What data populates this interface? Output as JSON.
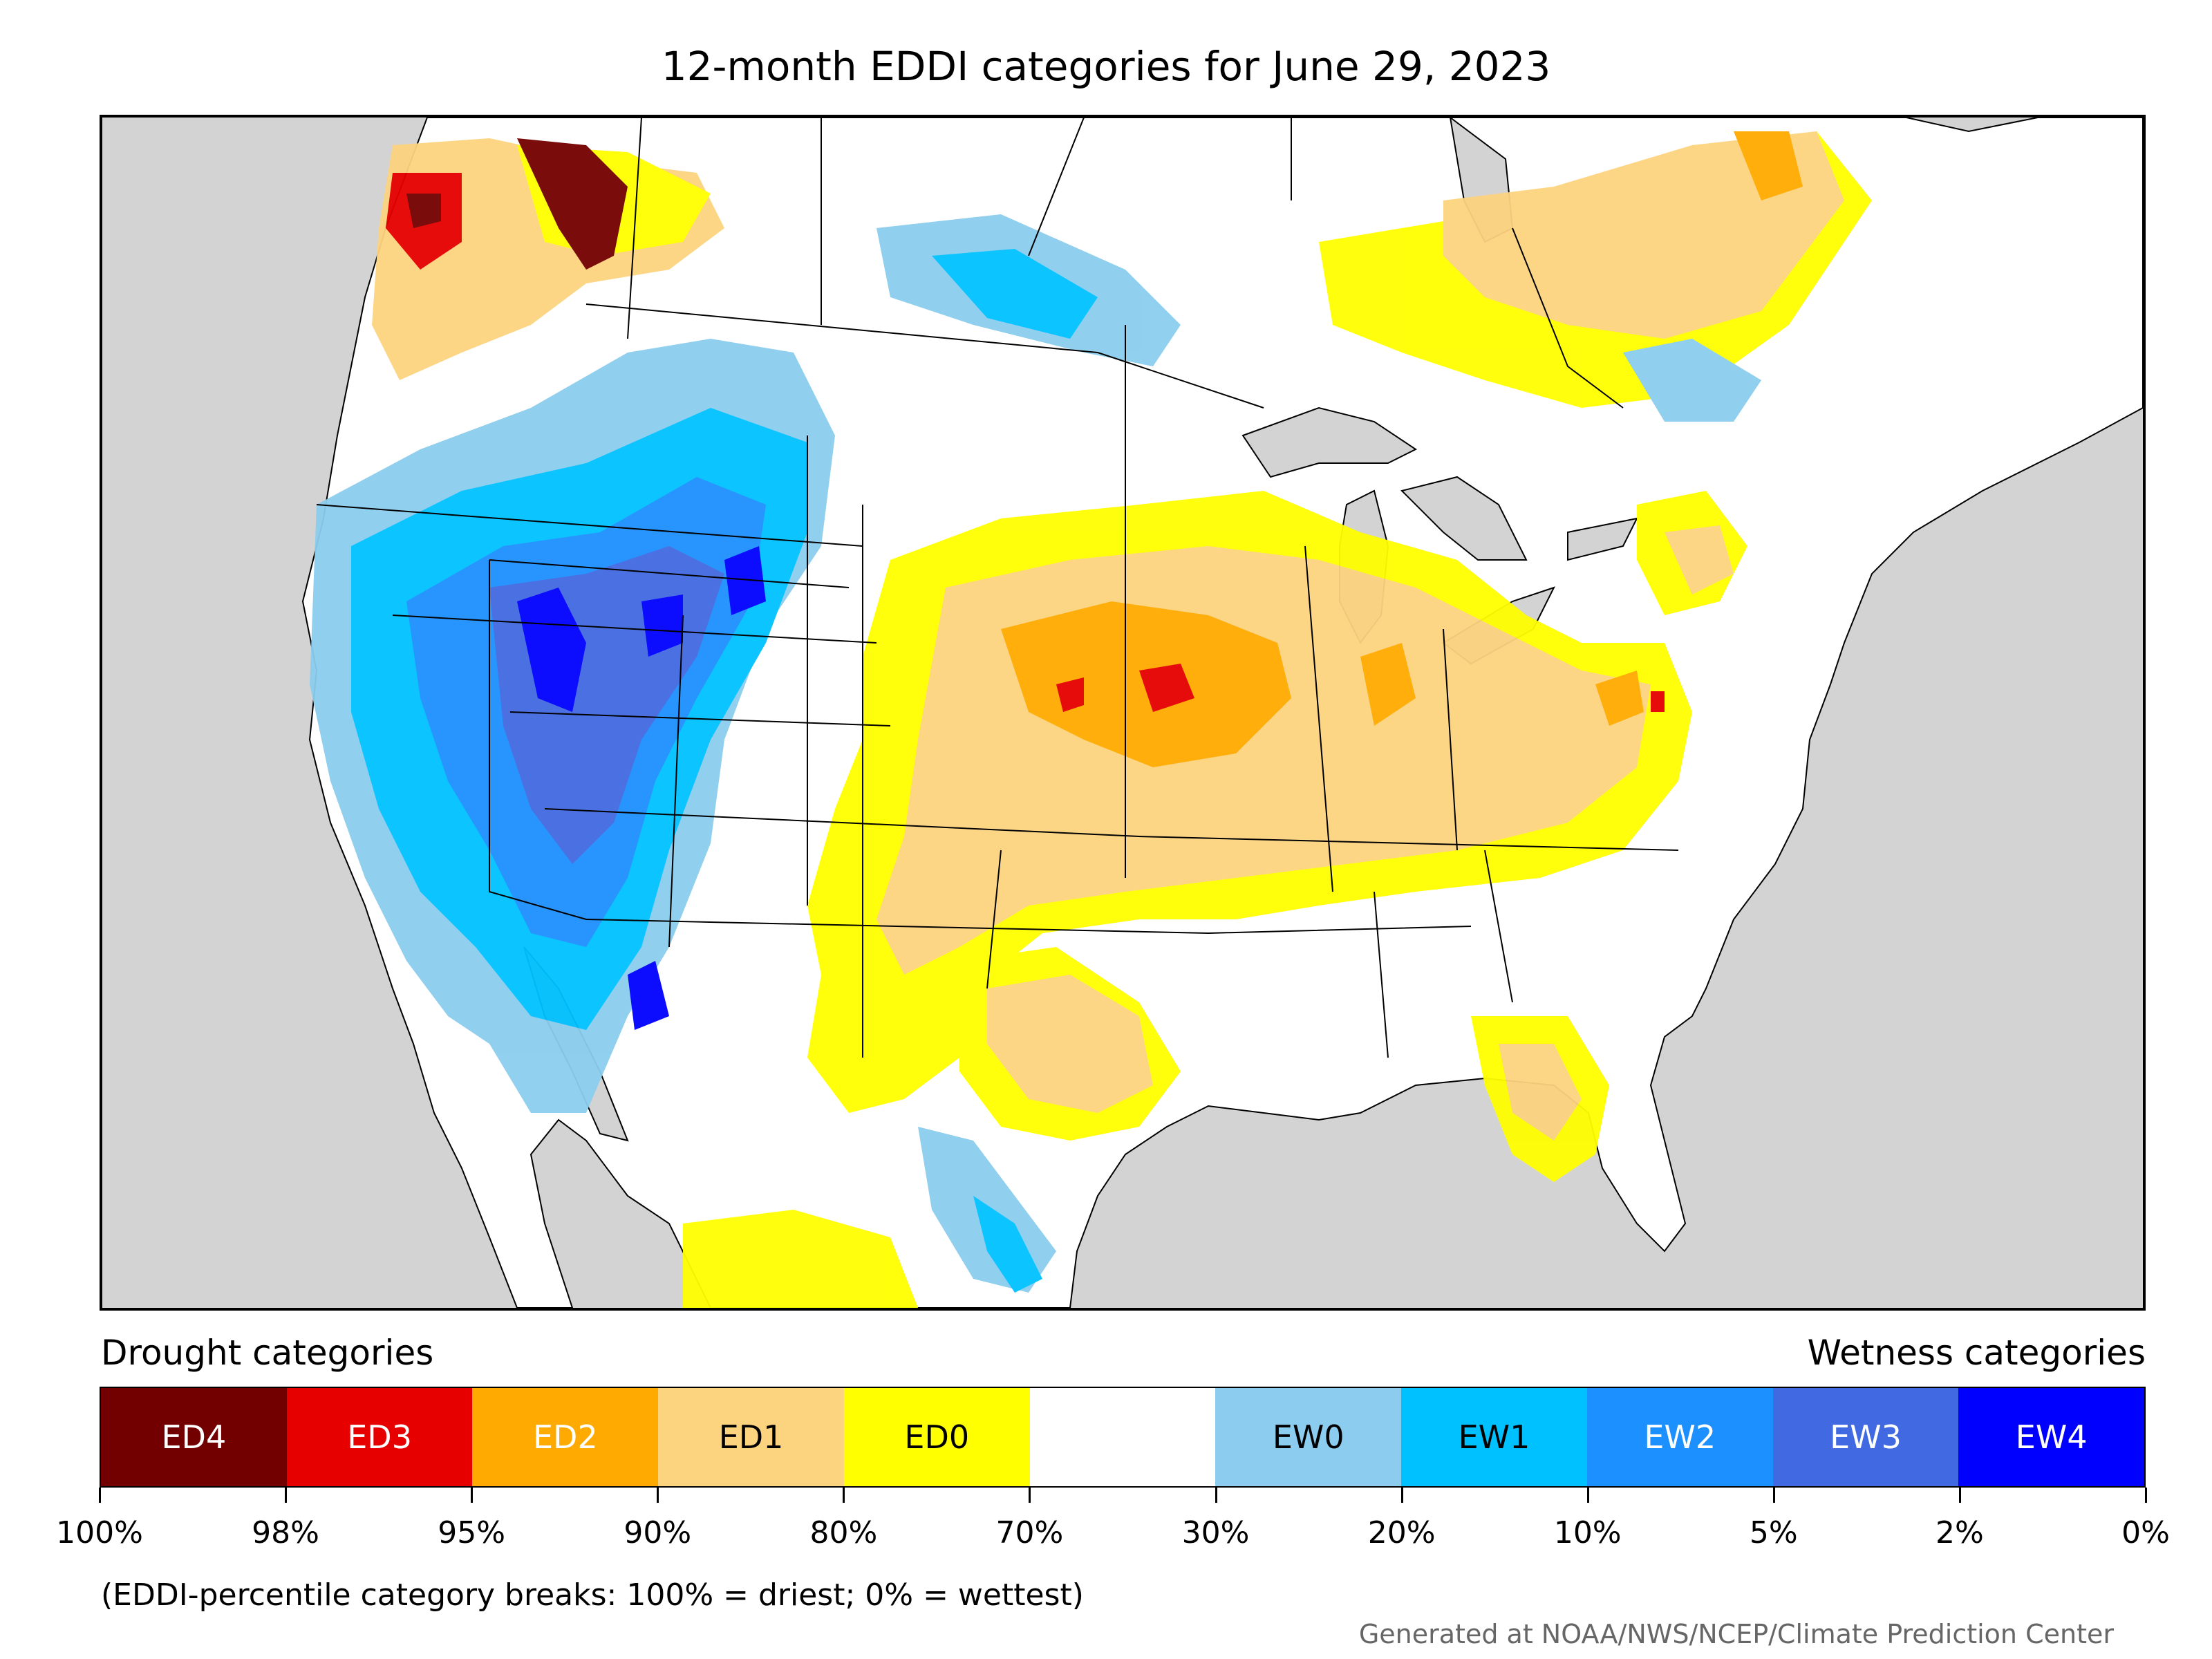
{
  "title": "12-month EDDI categories for June 29, 2023",
  "legend": {
    "drought_heading": "Drought categories",
    "wetness_heading": "Wetness categories",
    "categories": [
      {
        "label": "ED4",
        "color": "#730000",
        "text_color": "#ffffff"
      },
      {
        "label": "ED3",
        "color": "#e60000",
        "text_color": "#ffffff"
      },
      {
        "label": "ED2",
        "color": "#ffaa00",
        "text_color": "#ffffff"
      },
      {
        "label": "ED1",
        "color": "#fcd37f",
        "text_color": "#000000"
      },
      {
        "label": "ED0",
        "color": "#ffff00",
        "text_color": "#000000"
      },
      {
        "label": "",
        "color": "#ffffff",
        "text_color": "#000000"
      },
      {
        "label": "EW0",
        "color": "#8ccdef",
        "text_color": "#000000"
      },
      {
        "label": "EW1",
        "color": "#00c1ff",
        "text_color": "#000000"
      },
      {
        "label": "EW2",
        "color": "#1d90ff",
        "text_color": "#ffffff"
      },
      {
        "label": "EW3",
        "color": "#4169e1",
        "text_color": "#ffffff"
      },
      {
        "label": "EW4",
        "color": "#0000ff",
        "text_color": "#ffffff"
      }
    ],
    "breaks": [
      "100%",
      "98%",
      "95%",
      "90%",
      "80%",
      "70%",
      "30%",
      "20%",
      "10%",
      "5%",
      "2%",
      "0%"
    ]
  },
  "note": "(EDDI-percentile category breaks: 100% = driest; 0% = wettest)",
  "credit": "Generated at NOAA/NWS/NCEP/Climate Prediction Center",
  "map_colors": {
    "ocean": "#d3d3d3",
    "land": "#ffffff",
    "borders": "#000000"
  }
}
